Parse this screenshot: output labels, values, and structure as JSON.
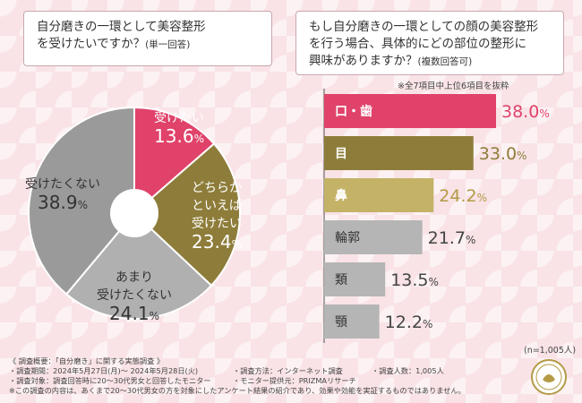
{
  "q1": {
    "title": "自分磨きの一環として美容整形",
    "title2": "を受けたいですか？",
    "sub": "(単一回答)"
  },
  "q2": {
    "line1": "もし自分磨きの一環としての顔の美容整形",
    "line2": "を行う場合、具体的にどの部位の整形に",
    "line3": "興味がありますか？",
    "sub": "(複数回答可)"
  },
  "note_top": "※全7項目中上位6項目を抜粋",
  "n_label": "(n=1,005人)",
  "colors": {
    "pink": "#e0426a",
    "olive": "#8e7d3a",
    "gray": "#9e9e9e",
    "barGold": "#c4b267",
    "barGray": "#b5b5b5"
  },
  "chart_data": [
    {
      "type": "pie",
      "title": "自分磨きの一環として美容整形を受けたいですか？",
      "slices": [
        {
          "label": "受けたい",
          "value": 13.6,
          "value_text": "13.6",
          "color": "#e0426a"
        },
        {
          "label": "どちらかといえば受けたい",
          "label_lines": [
            "どちらか",
            "といえば",
            "受けたい"
          ],
          "value": 23.4,
          "value_text": "23.4",
          "color": "#8e7d3a"
        },
        {
          "label": "あまり受けたくない",
          "label_lines": [
            "あまり",
            "受けたくない"
          ],
          "value": 24.1,
          "value_text": "24.1",
          "color": "#b0b0b0"
        },
        {
          "label": "受けたくない",
          "value": 38.9,
          "value_text": "38.9",
          "color": "#9a9a9a"
        }
      ],
      "unit": "%"
    },
    {
      "type": "bar",
      "orientation": "horizontal",
      "title": "具体的にどの部位の整形に興味がありますか？",
      "categories": [
        "口・歯",
        "目",
        "鼻",
        "輪郭",
        "類",
        "顎"
      ],
      "values": [
        38.0,
        33.0,
        24.2,
        21.7,
        13.5,
        12.2
      ],
      "value_texts": [
        "38.0",
        "33.0",
        "24.2",
        "21.7",
        "13.5",
        "12.2"
      ],
      "colors": [
        "#e0426a",
        "#8e7d3a",
        "#c4b267",
        "#b5b5b5",
        "#b5b5b5",
        "#b5b5b5"
      ],
      "unit": "%",
      "xlim": [
        0,
        40
      ]
    }
  ],
  "footer": {
    "line1": "《 調査概要：「自分磨き」に関する実態調査 》",
    "period": "・調査期間：2024年5月27日(月)～ 2024年5月28日(火)",
    "method": "・調査方法：インターネット調査",
    "count": "・調査人数：1,005人",
    "target": "・調査対象：調査回答時に20～30代男女と回答したモニター",
    "provider": "・モニター提供元：PRIZMAリサーチ",
    "disclaimer": "※この調査の内容は、あくまで20～30代男女の方を対象にしたアンケート結果の紹介であり、効果や効能を実証するものではありません。"
  }
}
